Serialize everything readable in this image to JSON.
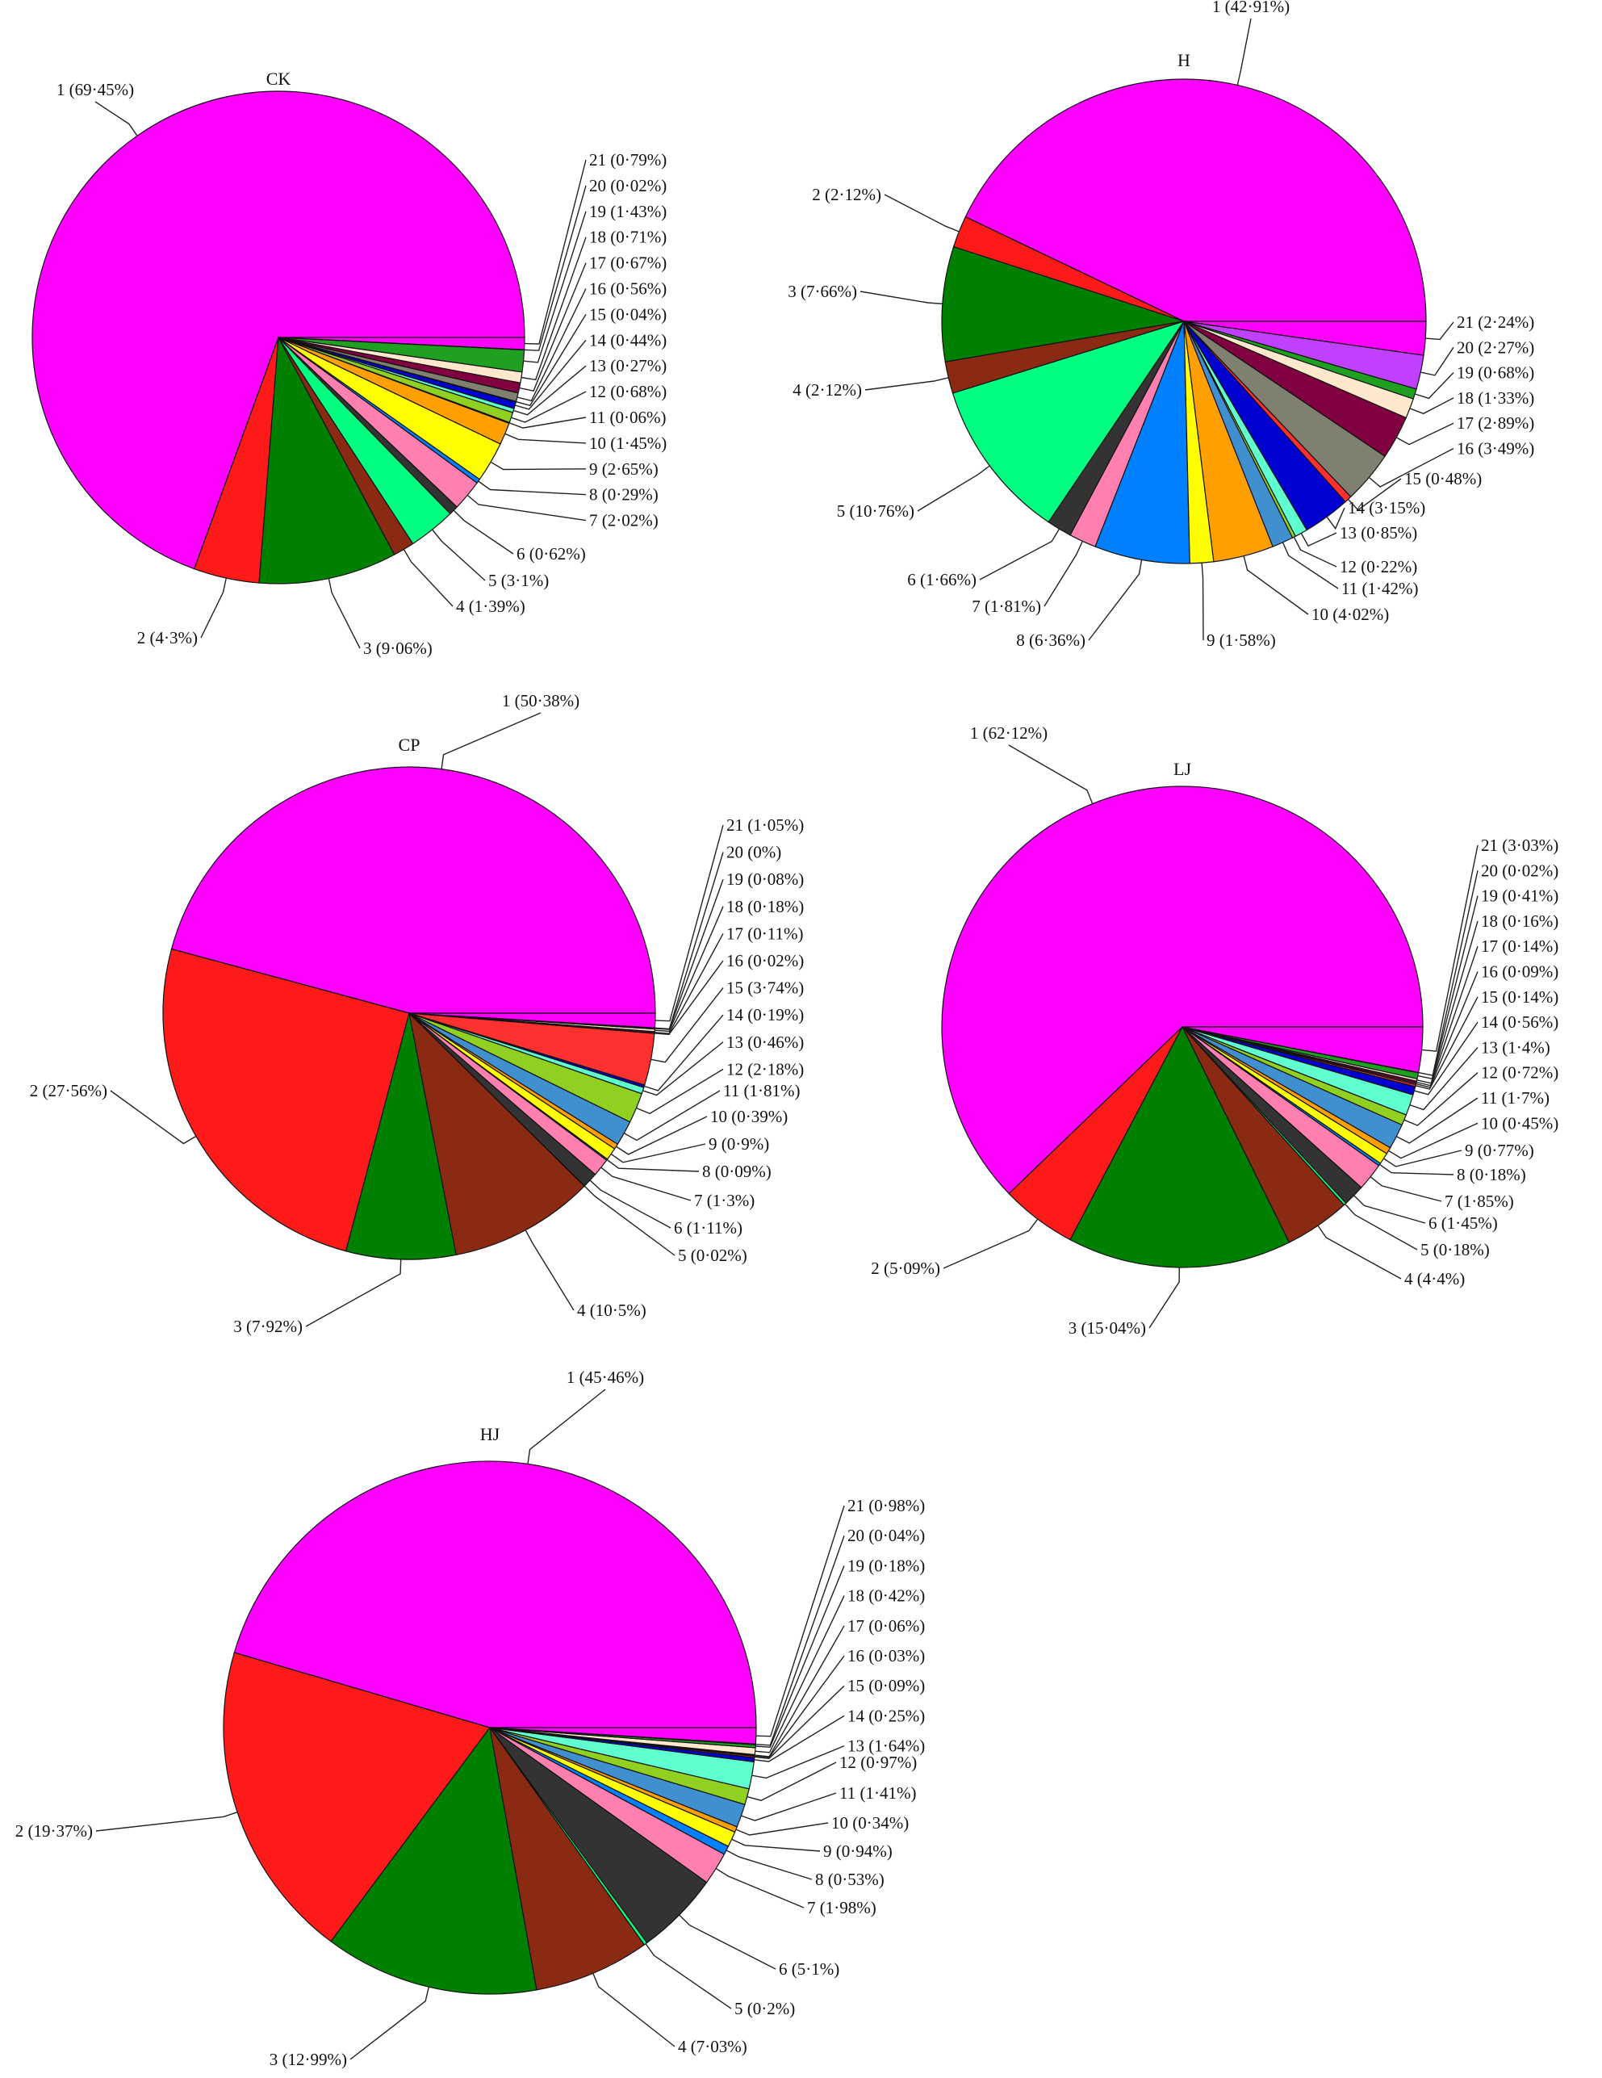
{
  "chart_data": [
    {
      "type": "pie",
      "title": "CK",
      "categories": [
        "1",
        "2",
        "3",
        "4",
        "5",
        "6",
        "7",
        "8",
        "9",
        "10",
        "11",
        "12",
        "13",
        "14",
        "15",
        "16",
        "17",
        "18",
        "19",
        "20",
        "21"
      ],
      "values": [
        69.45,
        4.3,
        9.06,
        1.39,
        3.1,
        0.62,
        2.02,
        0.29,
        2.65,
        1.45,
        0.06,
        0.68,
        0.27,
        0.44,
        0.04,
        0.56,
        0.67,
        0.71,
        1.43,
        0.02,
        0.79
      ],
      "labels": [
        "1 (69·45%)",
        "2 (4·3%)",
        "3 (9·06%)",
        "4 (1·39%)",
        "5 (3·1%)",
        "6 (0·62%)",
        "7 (2·02%)",
        "8 (0·29%)",
        "9 (2·65%)",
        "10 (1·45%)",
        "11 (0·06%)",
        "12 (0·68%)",
        "13 (0·27%)",
        "14 (0·44%)",
        "15 (0·04%)",
        "16 (0·56%)",
        "17 (0·67%)",
        "18 (0·71%)",
        "19 (1·43%)",
        "20 (0·02%)",
        "21 (0·79%)"
      ]
    },
    {
      "type": "pie",
      "title": "H",
      "categories": [
        "1",
        "2",
        "3",
        "4",
        "5",
        "6",
        "7",
        "8",
        "9",
        "10",
        "11",
        "12",
        "13",
        "14",
        "15",
        "16",
        "17",
        "18",
        "19",
        "20",
        "21"
      ],
      "values": [
        42.91,
        2.12,
        7.66,
        2.12,
        10.76,
        1.66,
        1.81,
        6.36,
        1.58,
        4.02,
        1.42,
        0.22,
        0.85,
        3.15,
        0.48,
        3.49,
        2.89,
        1.33,
        0.68,
        2.27,
        2.24
      ],
      "labels": [
        "1 (42·91%)",
        "2 (2·12%)",
        "3 (7·66%)",
        "4 (2·12%)",
        "5 (10·76%)",
        "6 (1·66%)",
        "7 (1·81%)",
        "8 (6·36%)",
        "9 (1·58%)",
        "10 (4·02%)",
        "11 (1·42%)",
        "12 (0·22%)",
        "13 (0·85%)",
        "14 (3·15%)",
        "15 (0·48%)",
        "16 (3·49%)",
        "17 (2·89%)",
        "18 (1·33%)",
        "19 (0·68%)",
        "20 (2·27%)",
        "21 (2·24%)"
      ]
    },
    {
      "type": "pie",
      "title": "CP",
      "categories": [
        "1",
        "2",
        "3",
        "4",
        "5",
        "6",
        "7",
        "8",
        "9",
        "10",
        "11",
        "12",
        "13",
        "14",
        "15",
        "16",
        "17",
        "18",
        "19",
        "20",
        "21"
      ],
      "values": [
        50.38,
        27.56,
        7.92,
        10.5,
        0.02,
        1.11,
        1.3,
        0.09,
        0.9,
        0.39,
        1.81,
        2.18,
        0.46,
        0.19,
        3.74,
        0.02,
        0.11,
        0.18,
        0.08,
        0,
        1.05
      ],
      "labels": [
        "1 (50·38%)",
        "2 (27·56%)",
        "3 (7·92%)",
        "4 (10·5%)",
        "5 (0·02%)",
        "6 (1·11%)",
        "7 (1·3%)",
        "8 (0·09%)",
        "9 (0·9%)",
        "10 (0·39%)",
        "11 (1·81%)",
        "12 (2·18%)",
        "13 (0·46%)",
        "14 (0·19%)",
        "15 (3·74%)",
        "16 (0·02%)",
        "17 (0·11%)",
        "18 (0·18%)",
        "19 (0·08%)",
        "20 (0%)",
        "21 (1·05%)"
      ]
    },
    {
      "type": "pie",
      "title": "LJ",
      "categories": [
        "1",
        "2",
        "3",
        "4",
        "5",
        "6",
        "7",
        "8",
        "9",
        "10",
        "11",
        "12",
        "13",
        "14",
        "15",
        "16",
        "17",
        "18",
        "19",
        "20",
        "21"
      ],
      "values": [
        62.12,
        5.09,
        15.04,
        4.4,
        0.18,
        1.45,
        1.85,
        0.18,
        0.77,
        0.45,
        1.7,
        0.72,
        1.4,
        0.56,
        0.14,
        0.09,
        0.14,
        0.16,
        0.41,
        0.02,
        3.03
      ],
      "labels": [
        "1 (62·12%)",
        "2 (5·09%)",
        "3 (15·04%)",
        "4 (4·4%)",
        "5 (0·18%)",
        "6 (1·45%)",
        "7 (1·85%)",
        "8 (0·18%)",
        "9 (0·77%)",
        "10 (0·45%)",
        "11 (1·7%)",
        "12 (0·72%)",
        "13 (1·4%)",
        "14 (0·56%)",
        "15 (0·14%)",
        "16 (0·09%)",
        "17 (0·14%)",
        "18 (0·16%)",
        "19 (0·41%)",
        "20 (0·02%)",
        "21 (3·03%)"
      ]
    },
    {
      "type": "pie",
      "title": "HJ",
      "categories": [
        "1",
        "2",
        "3",
        "4",
        "5",
        "6",
        "7",
        "8",
        "9",
        "10",
        "11",
        "12",
        "13",
        "14",
        "15",
        "16",
        "17",
        "18",
        "19",
        "20",
        "21"
      ],
      "values": [
        45.46,
        19.37,
        12.99,
        7.03,
        0.2,
        5.1,
        1.98,
        0.53,
        0.94,
        0.34,
        1.41,
        0.97,
        1.64,
        0.25,
        0.09,
        0.03,
        0.06,
        0.42,
        0.18,
        0.04,
        0.98
      ],
      "labels": [
        "1 (45·46%)",
        "2 (19·37%)",
        "3 (12·99%)",
        "4 (7·03%)",
        "5 (0·2%)",
        "6 (5·1%)",
        "7 (1·98%)",
        "8 (0·53%)",
        "9 (0·94%)",
        "10 (0·34%)",
        "11 (1·41%)",
        "12 (0·97%)",
        "13 (1·64%)",
        "14 (0·25%)",
        "15 (0·09%)",
        "16 (0·03%)",
        "17 (0·06%)",
        "18 (0·42%)",
        "19 (0·18%)",
        "20 (0·04%)",
        "21 (0·98%)"
      ]
    }
  ],
  "colors": [
    "#ff00ff",
    "#ff1a1a",
    "#008000",
    "#8b2a12",
    "#00ff80",
    "#333333",
    "#ff80b0",
    "#0080ff",
    "#ffff00",
    "#ffa000",
    "#4090d0",
    "#90d020",
    "#60ffd0",
    "#0000d0",
    "#ff3030",
    "#808070",
    "#800040",
    "#ffe8cc",
    "#20a020",
    "#c040ff",
    "#ff00ff"
  ]
}
